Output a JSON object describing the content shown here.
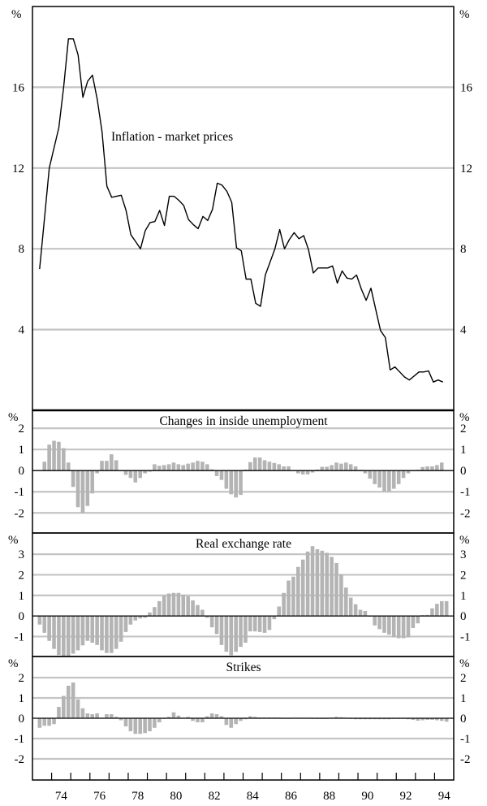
{
  "chart_data": [
    {
      "type": "line",
      "id": "inflation",
      "title": "Inflation - market prices",
      "yunit": "%",
      "ylim": [
        0,
        20
      ],
      "yticks": [
        4,
        8,
        12,
        16
      ],
      "x_start": 1973.375,
      "x_step": 0.25,
      "values": [
        7.0,
        9.5,
        12.0,
        13.0,
        14.0,
        16.0,
        18.4,
        18.4,
        17.6,
        15.5,
        16.3,
        16.6,
        15.4,
        13.8,
        11.1,
        10.55,
        10.6,
        10.65,
        9.9,
        8.7,
        8.35,
        8.0,
        8.9,
        9.3,
        9.35,
        9.9,
        9.15,
        10.6,
        10.6,
        10.4,
        10.15,
        9.45,
        9.2,
        9.0,
        9.6,
        9.4,
        9.95,
        11.25,
        11.15,
        10.85,
        10.3,
        8.05,
        7.9,
        6.5,
        6.5,
        5.3,
        5.15,
        6.7,
        7.35,
        8.0,
        8.95,
        8.0,
        8.45,
        8.8,
        8.5,
        8.65,
        7.95,
        6.8,
        7.05,
        7.05,
        7.05,
        7.15,
        6.3,
        6.9,
        6.55,
        6.5,
        6.7,
        6.0,
        5.45,
        6.05,
        5.0,
        3.95,
        3.6,
        2.0,
        2.15,
        1.9,
        1.65,
        1.5,
        1.7,
        1.9,
        1.9,
        1.95,
        1.4,
        1.5,
        1.4
      ]
    },
    {
      "type": "bar",
      "id": "unemployment",
      "title": "Changes in inside unemployment",
      "yunit": "%",
      "ylim": [
        -2.95,
        2.85
      ],
      "yticks": [
        -2,
        -1,
        0,
        1,
        2
      ],
      "x_start": 1973.625,
      "x_step": 0.25,
      "values": [
        0.42,
        1.23,
        1.41,
        1.36,
        1.06,
        0.38,
        -0.77,
        -1.73,
        -2.0,
        -1.67,
        -1.08,
        -0.13,
        0.46,
        0.46,
        0.77,
        0.49,
        0.0,
        -0.2,
        -0.35,
        -0.56,
        -0.35,
        -0.13,
        -0.05,
        0.3,
        0.23,
        0.26,
        0.3,
        0.38,
        0.3,
        0.26,
        0.33,
        0.38,
        0.46,
        0.42,
        0.3,
        0.06,
        -0.26,
        -0.44,
        -0.86,
        -1.12,
        -1.27,
        -1.15,
        0.05,
        0.4,
        0.62,
        0.62,
        0.49,
        0.42,
        0.36,
        0.3,
        0.2,
        0.2,
        0.0,
        -0.13,
        -0.18,
        -0.18,
        -0.09,
        0.05,
        0.18,
        0.18,
        0.26,
        0.38,
        0.33,
        0.38,
        0.3,
        0.2,
        0.04,
        -0.13,
        -0.38,
        -0.64,
        -0.8,
        -0.99,
        -0.99,
        -0.86,
        -0.64,
        -0.35,
        -0.13,
        0.0,
        0.04,
        0.17,
        0.2,
        0.2,
        0.26,
        0.38
      ]
    },
    {
      "type": "bar",
      "id": "real-exchange-rate",
      "title": "Real exchange rate",
      "yunit": "%",
      "ylim": [
        -1.97,
        4.03
      ],
      "yticks": [
        -1,
        0,
        1,
        2,
        3
      ],
      "x_start": 1973.375,
      "x_step": 0.25,
      "values": [
        -0.42,
        -0.82,
        -1.21,
        -1.6,
        -1.9,
        -1.93,
        -1.93,
        -1.83,
        -1.67,
        -1.43,
        -1.21,
        -1.3,
        -1.41,
        -1.67,
        -1.8,
        -1.8,
        -1.6,
        -1.25,
        -0.78,
        -0.42,
        -0.22,
        -0.12,
        -0.09,
        0.17,
        0.43,
        0.72,
        0.99,
        1.09,
        1.12,
        1.12,
        1.03,
        0.96,
        0.76,
        0.53,
        0.3,
        -0.09,
        -0.55,
        -0.88,
        -1.41,
        -1.74,
        -1.91,
        -1.74,
        -1.5,
        -1.3,
        -0.75,
        -0.75,
        -0.78,
        -0.82,
        -0.68,
        -0.16,
        0.46,
        1.12,
        1.72,
        1.91,
        2.38,
        2.74,
        3.13,
        3.39,
        3.24,
        3.17,
        3.07,
        2.87,
        2.57,
        2.01,
        1.38,
        0.89,
        0.57,
        0.3,
        0.24,
        0.0,
        -0.46,
        -0.64,
        -0.82,
        -0.91,
        -1.04,
        -1.08,
        -1.08,
        -1.04,
        -0.59,
        -0.36,
        0.04,
        0.05,
        0.37,
        0.59,
        0.72,
        0.72
      ]
    },
    {
      "type": "bar",
      "id": "strikes",
      "title": "Strikes",
      "yunit": "%",
      "ylim": [
        -3.04,
        3.04
      ],
      "yticks": [
        -2,
        -1,
        0,
        1,
        2
      ],
      "x_start": 1973.375,
      "x_step": 0.25,
      "values": [
        -0.47,
        -0.37,
        -0.37,
        -0.29,
        0.56,
        1.1,
        1.6,
        1.76,
        0.93,
        0.49,
        0.24,
        0.2,
        0.24,
        0.03,
        0.2,
        0.2,
        0.07,
        -0.1,
        -0.4,
        -0.64,
        -0.77,
        -0.77,
        -0.73,
        -0.64,
        -0.47,
        -0.2,
        -0.03,
        0.07,
        0.29,
        0.13,
        0.03,
        0.07,
        -0.13,
        -0.2,
        -0.2,
        0.1,
        0.24,
        0.2,
        0.1,
        -0.33,
        -0.47,
        -0.29,
        -0.13,
        -0.05,
        0.1,
        0.07,
        0.04,
        0.04,
        0.04,
        0.04,
        0.04,
        0.0,
        0.0,
        0.03,
        0.03,
        0.03,
        0.03,
        0.0,
        0.0,
        0.0,
        0.0,
        0.03,
        0.07,
        0.05,
        0.03,
        0.0,
        -0.05,
        -0.05,
        -0.05,
        -0.05,
        -0.05,
        -0.05,
        -0.05,
        -0.05,
        0.0,
        0.0,
        0.0,
        -0.05,
        -0.08,
        -0.12,
        -0.1,
        -0.08,
        -0.08,
        -0.1,
        -0.13,
        -0.17
      ]
    }
  ],
  "x_axis": {
    "xlim": [
      1973,
      1995
    ],
    "tick_years": [
      1974,
      1975,
      1976,
      1977,
      1978,
      1979,
      1980,
      1981,
      1982,
      1983,
      1984,
      1985,
      1986,
      1987,
      1988,
      1989,
      1990,
      1991,
      1992,
      1993,
      1994
    ],
    "labels": [
      "74",
      "76",
      "78",
      "80",
      "82",
      "84",
      "86",
      "88",
      "90",
      "92",
      "94"
    ],
    "label_years": [
      1974,
      1976,
      1978,
      1980,
      1982,
      1984,
      1986,
      1988,
      1990,
      1992,
      1994
    ]
  },
  "colors": {
    "bar": "#b4b4b4",
    "grid": "#c4c4c4",
    "line": "#000000",
    "axis": "#000000"
  }
}
